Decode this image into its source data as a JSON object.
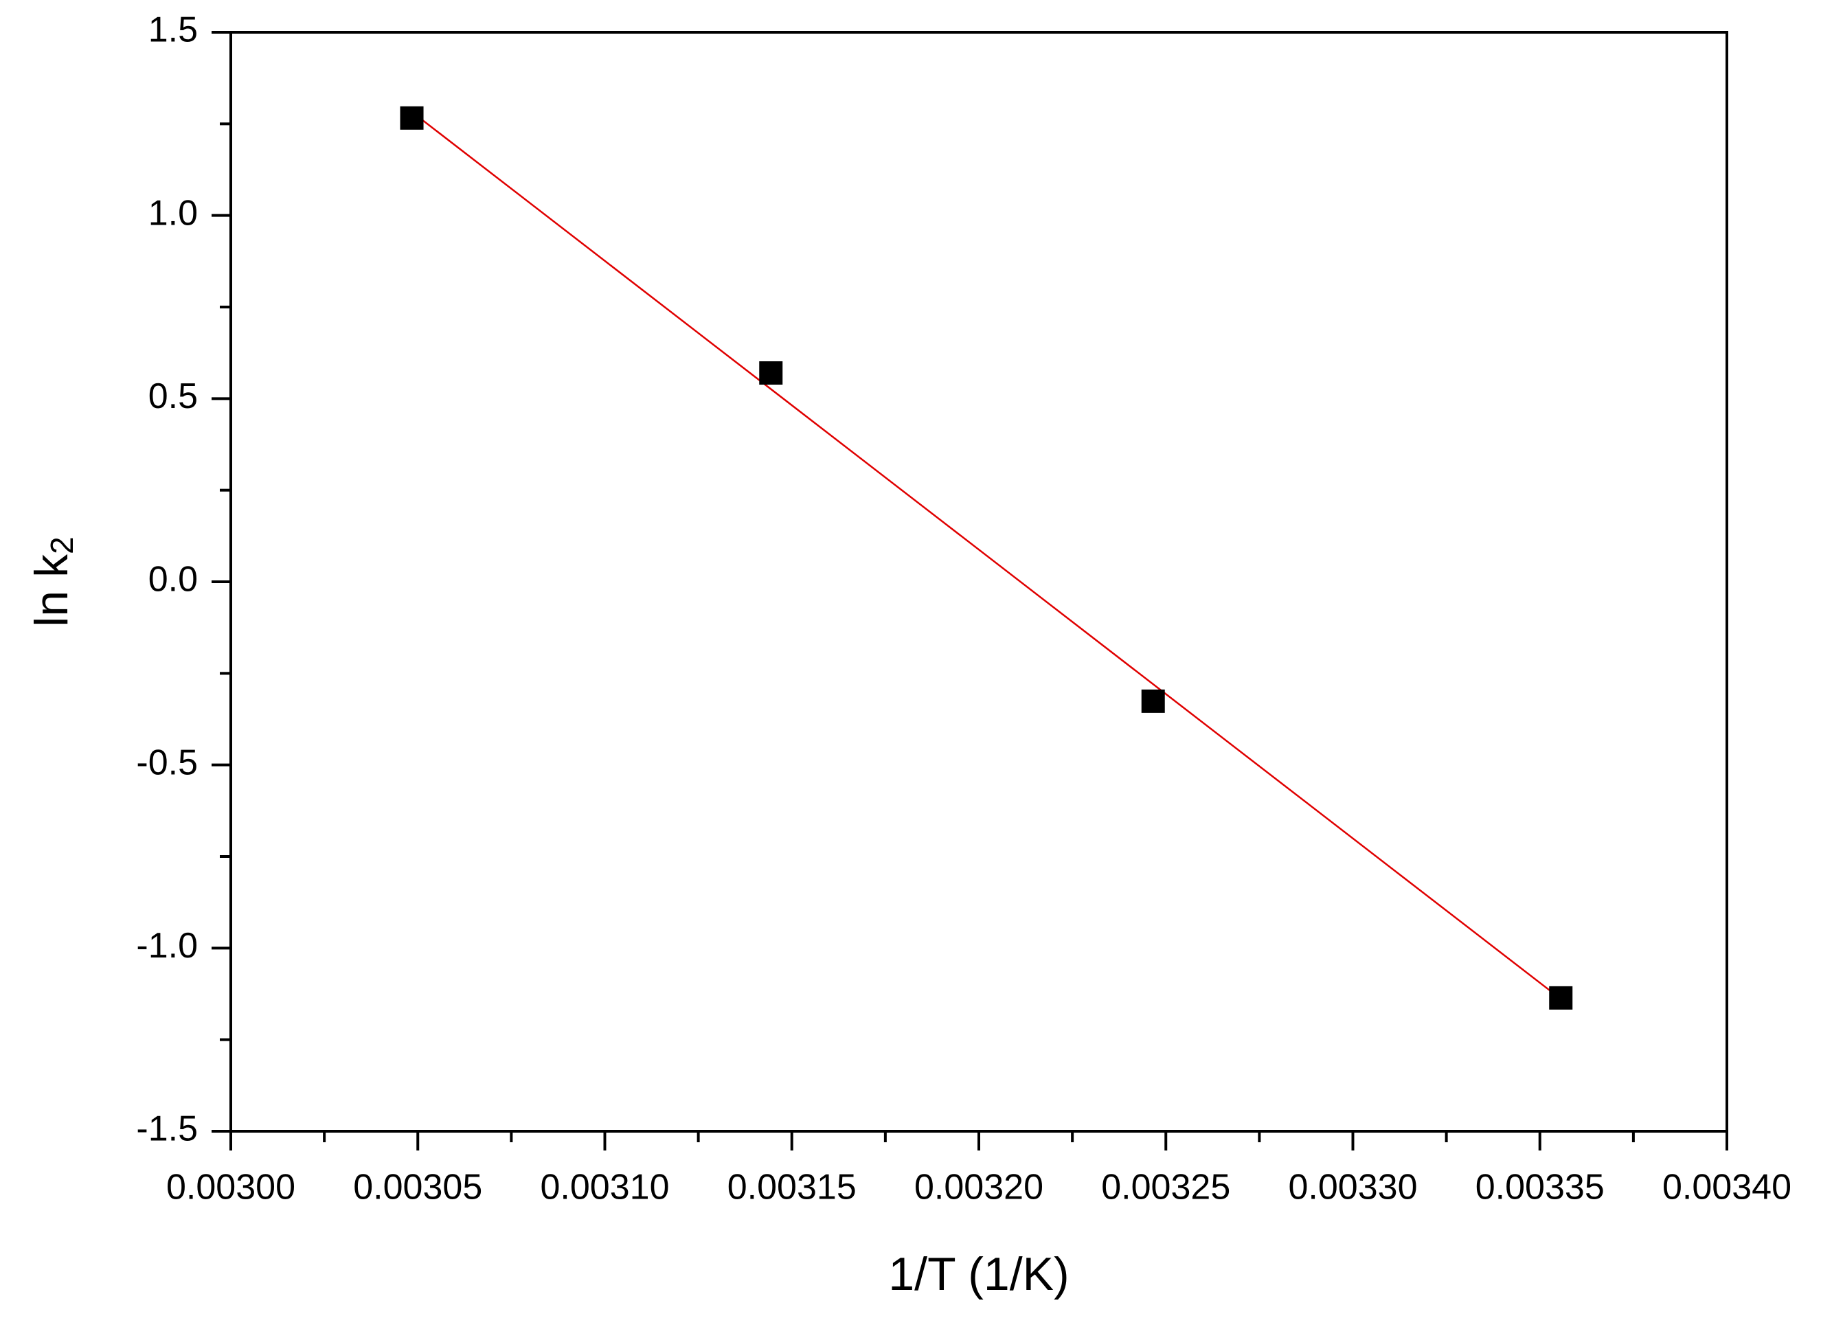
{
  "chart_data": {
    "type": "scatter",
    "xlabel": "1/T (1/K)",
    "ylabel": "ln k",
    "ylabel_sub": "2",
    "x": [
      0.0030484,
      0.0031444,
      0.0032466,
      0.0033556
    ],
    "values": [
      1.266,
      0.57,
      -0.326,
      -1.136
    ],
    "color": "#000000",
    "marker": "square",
    "fit": {
      "x": [
        0.003049,
        0.003356
      ],
      "values": [
        1.278,
        -1.142
      ],
      "color": "#e00000"
    },
    "xlim": [
      0.003,
      0.0034
    ],
    "xticks": [
      {
        "value": 0.003,
        "label": "0.00300"
      },
      {
        "value": 0.00305,
        "label": "0.00305"
      },
      {
        "value": 0.0031,
        "label": "0.00310"
      },
      {
        "value": 0.00315,
        "label": "0.00315"
      },
      {
        "value": 0.0032,
        "label": "0.00320"
      },
      {
        "value": 0.00325,
        "label": "0.00325"
      },
      {
        "value": 0.0033,
        "label": "0.00330"
      },
      {
        "value": 0.00335,
        "label": "0.00335"
      },
      {
        "value": 0.0034,
        "label": "0.00340"
      }
    ],
    "xminorticks": [
      0.003025,
      0.003075,
      0.003125,
      0.003175,
      0.003225,
      0.003275,
      0.003325,
      0.003375
    ],
    "ylim": [
      -1.5,
      1.5
    ],
    "yticks": [
      -1.5,
      {
        "value": -1,
        "label": "-1.0"
      },
      -0.5,
      {
        "value": 0,
        "label": "0.0"
      },
      0.5,
      {
        "value": 1,
        "label": "1.0"
      },
      1.5
    ],
    "yminorticks": [
      -1.25,
      -0.75,
      -0.25,
      0.25,
      0.75,
      1.25
    ],
    "grid": false
  }
}
